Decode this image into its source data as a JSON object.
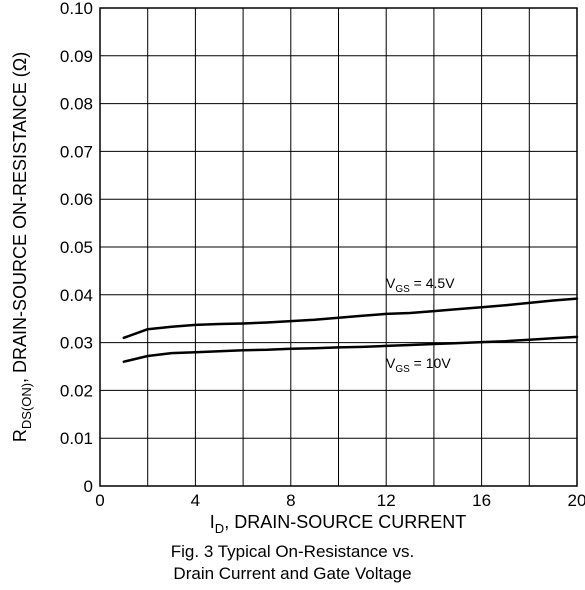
{
  "chart_data": {
    "type": "line",
    "xlabel": {
      "main": "I",
      "sub": "D",
      "rest": ", DRAIN-SOURCE CURRENT"
    },
    "ylabel": {
      "main": "R",
      "sub": "DS(ON)",
      "rest": ", DRAIN-SOURCE ON-RESISTANCE (Ω)"
    },
    "xlim": [
      0,
      20
    ],
    "ylim": [
      0,
      0.1
    ],
    "xticks": [
      "0",
      "4",
      "8",
      "12",
      "16",
      "20"
    ],
    "yticks": [
      "0",
      "0.01",
      "0.02",
      "0.03",
      "0.04",
      "0.05",
      "0.06",
      "0.07",
      "0.08",
      "0.09",
      "0.10"
    ],
    "grid": true,
    "series": [
      {
        "label": {
          "main": "V",
          "sub": "GS",
          "rest": " = 4.5V"
        },
        "x": [
          1,
          2,
          3,
          4,
          5,
          6,
          7,
          8,
          9,
          10,
          11,
          12,
          13,
          14,
          15,
          16,
          17,
          18,
          19,
          20
        ],
        "y": [
          0.031,
          0.0328,
          0.0333,
          0.0337,
          0.0339,
          0.034,
          0.0342,
          0.0345,
          0.0348,
          0.0352,
          0.0356,
          0.036,
          0.0362,
          0.0366,
          0.037,
          0.0374,
          0.0378,
          0.0383,
          0.0388,
          0.0392
        ]
      },
      {
        "label": {
          "main": "V",
          "sub": "GS",
          "rest": " = 10V"
        },
        "x": [
          1,
          2,
          3,
          4,
          5,
          6,
          7,
          8,
          9,
          10,
          11,
          12,
          13,
          14,
          15,
          16,
          17,
          18,
          19,
          20
        ],
        "y": [
          0.026,
          0.0272,
          0.0278,
          0.028,
          0.0282,
          0.0284,
          0.0285,
          0.0287,
          0.0288,
          0.029,
          0.0291,
          0.0293,
          0.0295,
          0.0297,
          0.0299,
          0.0301,
          0.0303,
          0.0306,
          0.0309,
          0.0312
        ]
      }
    ]
  },
  "caption": {
    "line1": "Fig. 3 Typical On-Resistance vs.",
    "line2": "Drain Current and Gate Voltage"
  }
}
